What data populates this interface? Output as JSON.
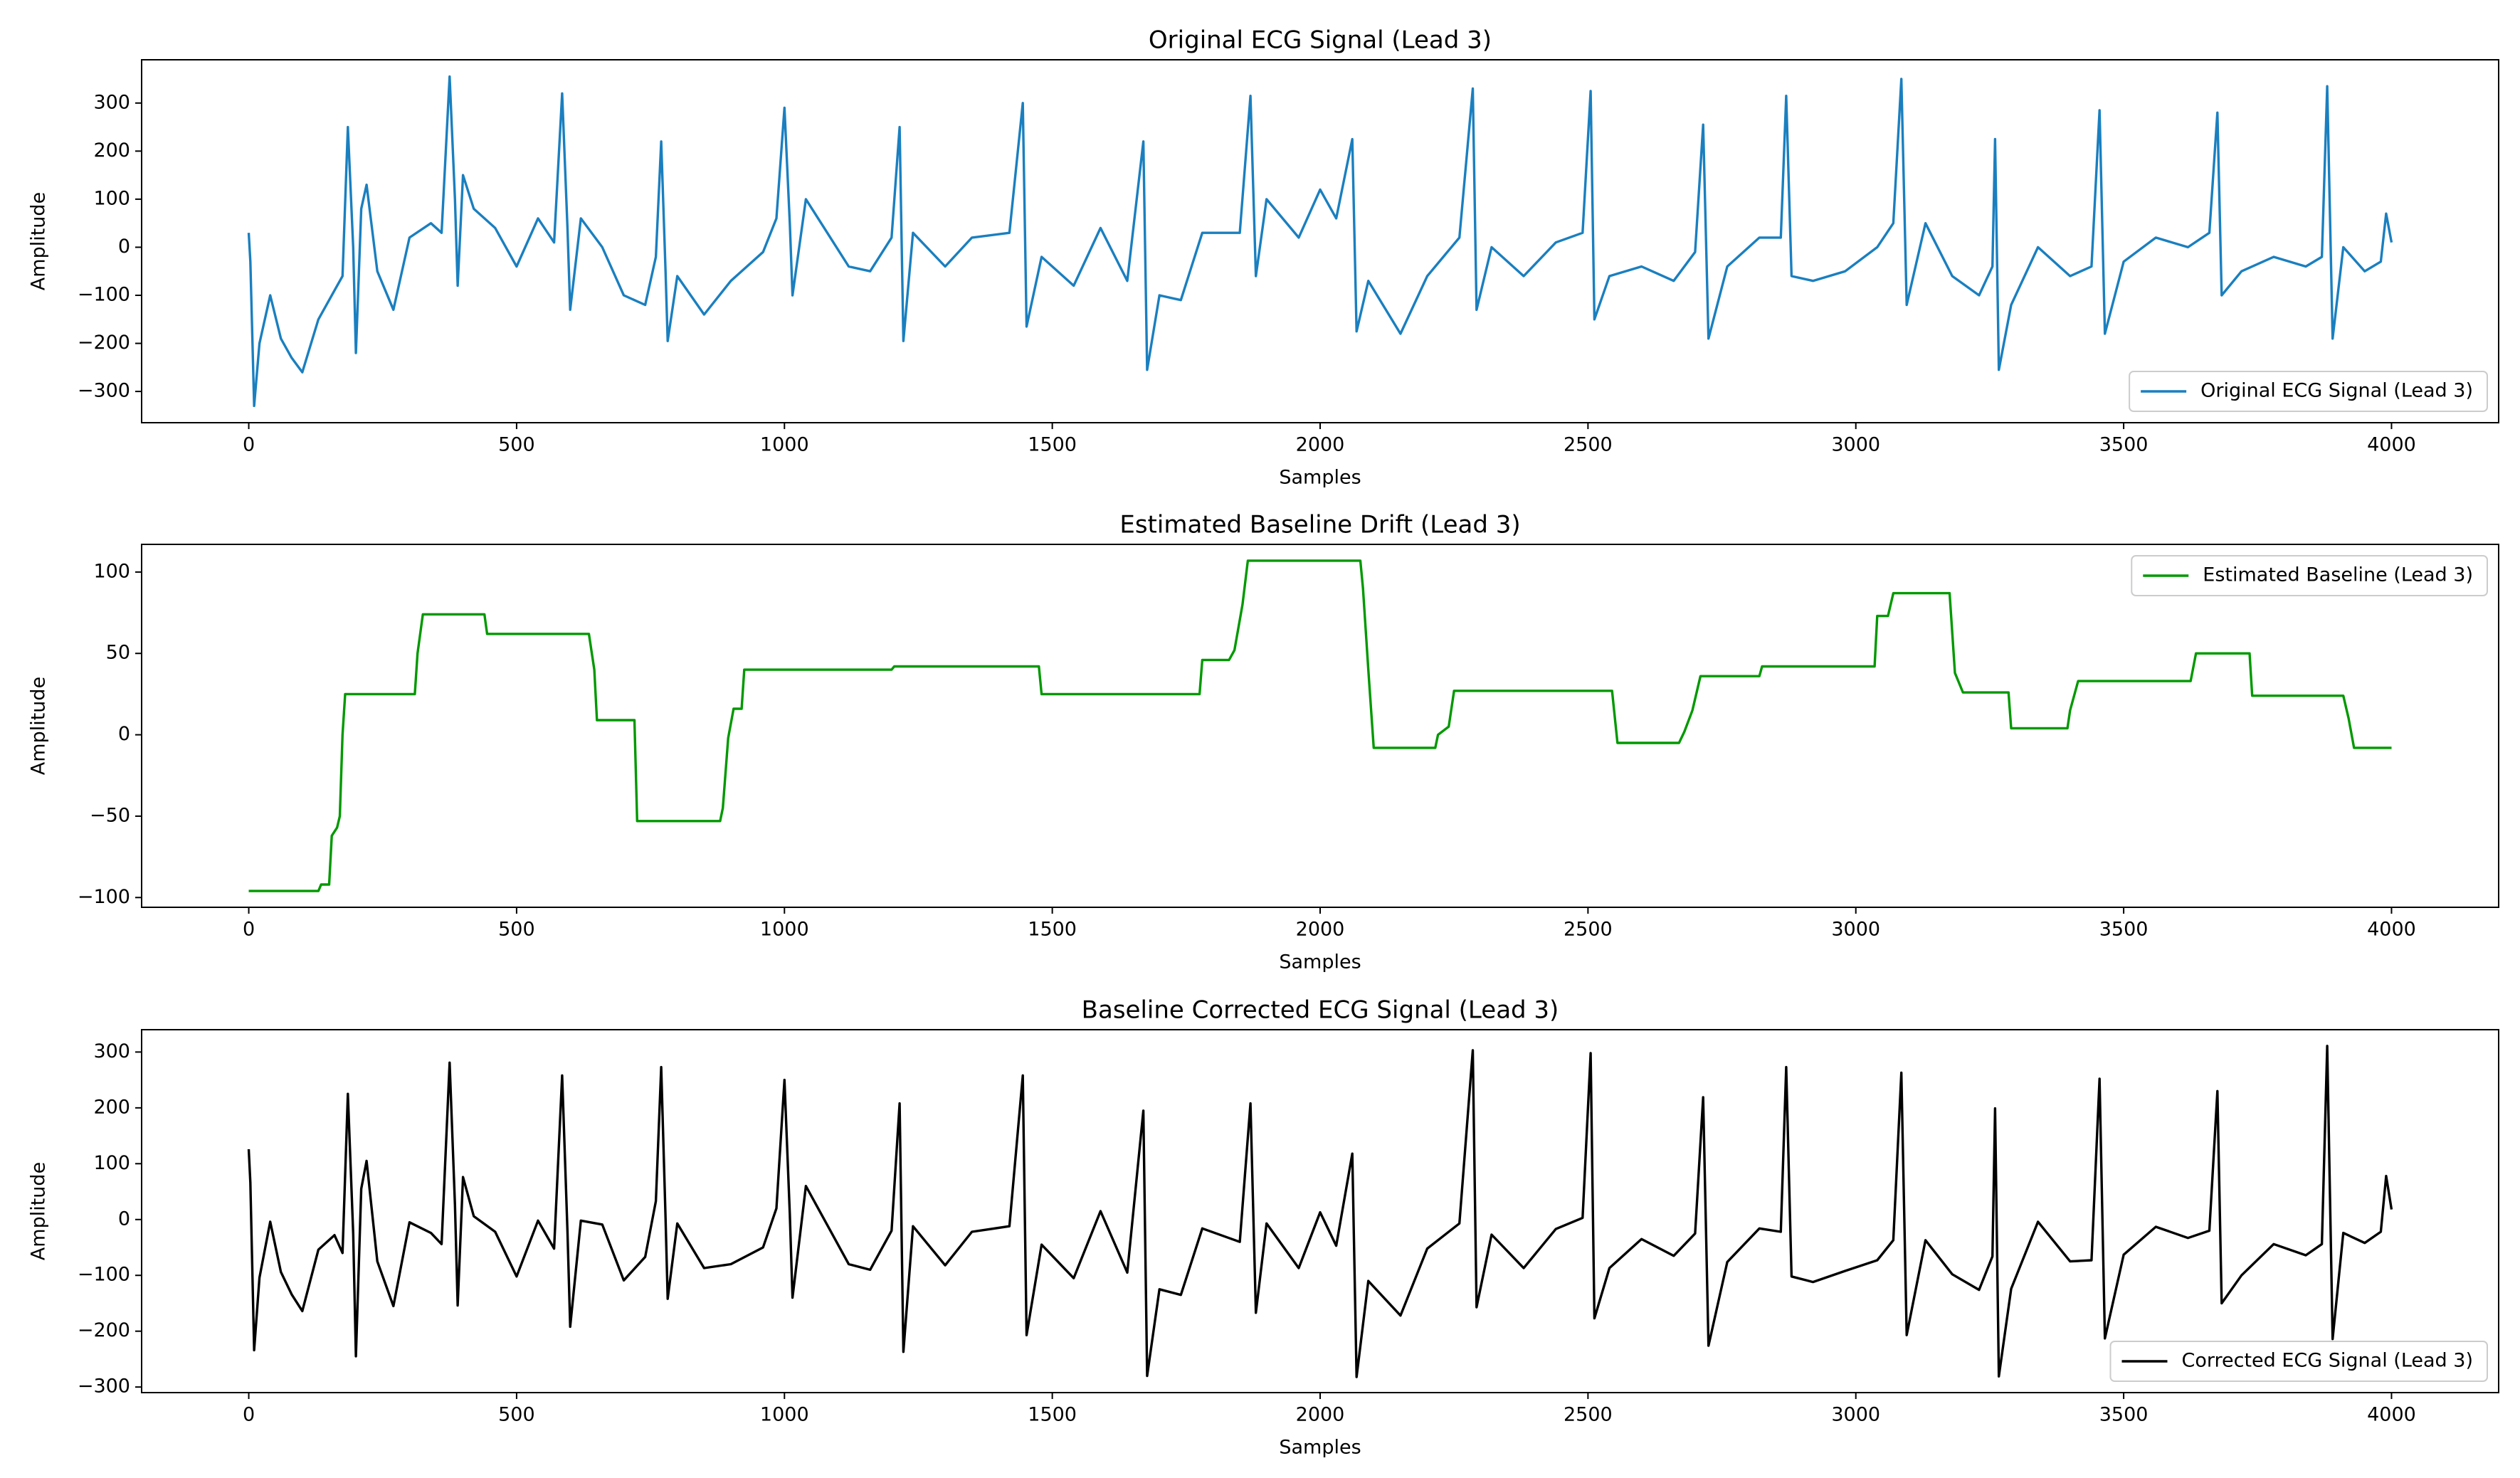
{
  "chart_data": [
    {
      "type": "line",
      "title": "Original ECG Signal (Lead 3)",
      "xlabel": "Samples",
      "ylabel": "Amplitude",
      "x": [
        0,
        3,
        10,
        20,
        40,
        60,
        80,
        100,
        130,
        160,
        175,
        185,
        195,
        200,
        210,
        220,
        240,
        270,
        300,
        340,
        360,
        375,
        385,
        390,
        400,
        420,
        460,
        500,
        540,
        570,
        585,
        595,
        600,
        620,
        660,
        700,
        740,
        760,
        770,
        778,
        782,
        800,
        850,
        900,
        960,
        985,
        1000,
        1010,
        1015,
        1040,
        1080,
        1120,
        1160,
        1200,
        1215,
        1222,
        1240,
        1300,
        1350,
        1420,
        1445,
        1452,
        1480,
        1540,
        1590,
        1640,
        1670,
        1677,
        1700,
        1740,
        1780,
        1850,
        1870,
        1880,
        1900,
        1960,
        2000,
        2030,
        2060,
        2068,
        2090,
        2150,
        2200,
        2260,
        2285,
        2292,
        2320,
        2380,
        2440,
        2490,
        2505,
        2512,
        2540,
        2600,
        2660,
        2700,
        2715,
        2725,
        2760,
        2820,
        2860,
        2870,
        2880,
        2920,
        2980,
        3040,
        3070,
        3085,
        3095,
        3130,
        3180,
        3230,
        3255,
        3260,
        3267,
        3290,
        3340,
        3400,
        3440,
        3455,
        3465,
        3500,
        3560,
        3620,
        3660,
        3675,
        3683,
        3720,
        3780,
        3840,
        3870,
        3880,
        3890,
        3910,
        3950,
        3980,
        3990,
        4000
      ],
      "series": [
        {
          "name": "Original ECG Signal (Lead 3)",
          "color": "#1a7fbf",
          "values": [
            30,
            -30,
            -330,
            -200,
            -100,
            -190,
            -230,
            -260,
            -150,
            -90,
            -60,
            250,
            0,
            -220,
            80,
            130,
            -50,
            -130,
            20,
            50,
            30,
            355,
            100,
            -80,
            150,
            80,
            40,
            -40,
            60,
            10,
            320,
            40,
            -130,
            60,
            0,
            -100,
            -120,
            -20,
            220,
            -50,
            -195,
            -60,
            -140,
            -70,
            -10,
            60,
            290,
            50,
            -100,
            100,
            30,
            -40,
            -50,
            20,
            250,
            -195,
            30,
            -40,
            20,
            30,
            300,
            -165,
            -20,
            -80,
            40,
            -70,
            220,
            -255,
            -100,
            -110,
            30,
            30,
            315,
            -60,
            100,
            20,
            120,
            60,
            225,
            -175,
            -70,
            -180,
            -60,
            20,
            330,
            -130,
            0,
            -60,
            10,
            30,
            325,
            -150,
            -60,
            -40,
            -70,
            -10,
            255,
            -190,
            -40,
            20,
            20,
            315,
            -60,
            -70,
            -50,
            0,
            50,
            350,
            -120,
            50,
            -60,
            -100,
            -40,
            225,
            -255,
            -120,
            0,
            -60,
            -40,
            285,
            -180,
            -30,
            20,
            0,
            30,
            280,
            -100,
            -50,
            -20,
            -40,
            -20,
            335,
            -190,
            0,
            -50,
            -30,
            70,
            10
          ]
        }
      ],
      "xlim": [
        -200,
        4200
      ],
      "ylim": [
        -365,
        390
      ],
      "xticks": [
        0,
        500,
        1000,
        1500,
        2000,
        2500,
        3000,
        3500,
        4000
      ],
      "yticks": [
        {
          "value": -300,
          "label": "−300"
        },
        {
          "value": -200,
          "label": "−200"
        },
        {
          "value": -100,
          "label": "−100"
        },
        0,
        100,
        200,
        300
      ],
      "legend": "lower right"
    },
    {
      "type": "line",
      "title": "Estimated Baseline Drift (Lead 3)",
      "xlabel": "Samples",
      "ylabel": "Amplitude",
      "x": [
        0,
        130,
        135,
        150,
        155,
        165,
        170,
        175,
        180,
        310,
        315,
        325,
        440,
        445,
        635,
        645,
        650,
        720,
        725,
        880,
        885,
        895,
        905,
        920,
        925,
        1200,
        1205,
        1475,
        1480,
        1775,
        1780,
        1830,
        1840,
        1855,
        1865,
        2075,
        2080,
        2090,
        2100,
        2215,
        2220,
        2240,
        2250,
        2545,
        2555,
        2670,
        2680,
        2695,
        2710,
        2820,
        2825,
        3035,
        3040,
        3060,
        3070,
        3175,
        3185,
        3200,
        3285,
        3290,
        3395,
        3400,
        3415,
        3625,
        3635,
        3735,
        3740,
        3910,
        3920,
        3930,
        4000
      ],
      "series": [
        {
          "name": "Estimated Baseline (Lead 3)",
          "color": "#009900",
          "values": [
            -96,
            -96,
            -92,
            -92,
            -62,
            -57,
            -50,
            0,
            25,
            25,
            50,
            74,
            74,
            62,
            62,
            40,
            9,
            9,
            -53,
            -53,
            -45,
            -2,
            16,
            16,
            40,
            40,
            42,
            42,
            25,
            25,
            46,
            46,
            52,
            80,
            107,
            107,
            90,
            40,
            -8,
            -8,
            0,
            5,
            27,
            27,
            -5,
            -5,
            2,
            15,
            36,
            36,
            42,
            42,
            73,
            73,
            87,
            87,
            38,
            26,
            26,
            4,
            4,
            15,
            33,
            33,
            50,
            50,
            24,
            24,
            10,
            -8,
            -8
          ]
        }
      ],
      "xlim": [
        -200,
        4200
      ],
      "ylim": [
        -106,
        117
      ],
      "xticks": [
        0,
        500,
        1000,
        1500,
        2000,
        2500,
        3000,
        3500,
        4000
      ],
      "yticks": [
        {
          "value": -100,
          "label": "−100"
        },
        {
          "value": -50,
          "label": "−50"
        },
        0,
        50,
        100
      ],
      "legend": "upper right"
    },
    {
      "type": "line",
      "title": "Baseline Corrected ECG Signal (Lead 3)",
      "xlabel": "Samples",
      "ylabel": "Amplitude",
      "x": [
        0,
        3,
        10,
        20,
        40,
        60,
        80,
        100,
        130,
        160,
        175,
        185,
        195,
        200,
        210,
        220,
        240,
        270,
        300,
        340,
        360,
        375,
        385,
        390,
        400,
        420,
        460,
        500,
        540,
        570,
        585,
        595,
        600,
        620,
        660,
        700,
        740,
        760,
        770,
        778,
        782,
        800,
        850,
        900,
        960,
        985,
        1000,
        1010,
        1015,
        1040,
        1080,
        1120,
        1160,
        1200,
        1215,
        1222,
        1240,
        1300,
        1350,
        1420,
        1445,
        1452,
        1480,
        1540,
        1590,
        1640,
        1670,
        1677,
        1700,
        1740,
        1780,
        1850,
        1870,
        1880,
        1900,
        1960,
        2000,
        2030,
        2060,
        2068,
        2090,
        2150,
        2200,
        2260,
        2285,
        2292,
        2320,
        2380,
        2440,
        2490,
        2505,
        2512,
        2540,
        2600,
        2660,
        2700,
        2715,
        2725,
        2760,
        2820,
        2860,
        2870,
        2880,
        2920,
        2980,
        3040,
        3070,
        3085,
        3095,
        3130,
        3180,
        3230,
        3255,
        3260,
        3267,
        3290,
        3340,
        3400,
        3440,
        3455,
        3465,
        3500,
        3560,
        3620,
        3660,
        3675,
        3683,
        3720,
        3780,
        3840,
        3870,
        3880,
        3890,
        3910,
        3950,
        3980,
        3990,
        4000
      ],
      "series": [
        {
          "name": "Corrected ECG Signal (Lead 3)",
          "color": "#000000",
          "values": [
            126,
            66,
            -234,
            -104,
            -4,
            -94,
            -134,
            -164,
            -54,
            -28,
            -60,
            225,
            -25,
            -245,
            55,
            105,
            -75,
            -155,
            -5,
            -24,
            -44,
            281,
            26,
            -154,
            76,
            6,
            -22,
            -102,
            -2,
            -52,
            258,
            -22,
            -192,
            -2,
            -9,
            -109,
            -67,
            33,
            273,
            3,
            -142,
            -7,
            -87,
            -80,
            -50,
            20,
            250,
            10,
            -140,
            60,
            -10,
            -80,
            -90,
            -20,
            208,
            -237,
            -12,
            -82,
            -22,
            -12,
            258,
            -207,
            -45,
            -105,
            15,
            -95,
            195,
            -280,
            -125,
            -135,
            -16,
            -40,
            208,
            -167,
            -7,
            -87,
            13,
            -47,
            118,
            -282,
            -110,
            -172,
            -52,
            -7,
            303,
            -157,
            -27,
            -87,
            -17,
            3,
            298,
            -177,
            -87,
            -35,
            -65,
            -25,
            219,
            -226,
            -76,
            -16,
            -22,
            273,
            -102,
            -112,
            -92,
            -73,
            -37,
            263,
            -207,
            -37,
            -98,
            -126,
            -66,
            199,
            -281,
            -124,
            -4,
            -75,
            -73,
            252,
            -213,
            -63,
            -13,
            -33,
            -20,
            230,
            -150,
            -100,
            -44,
            -64,
            -44,
            311,
            -214,
            -24,
            -42,
            -22,
            78,
            18
          ]
        }
      ],
      "xlim": [
        -200,
        4200
      ],
      "ylim": [
        -310,
        340
      ],
      "xticks": [
        0,
        500,
        1000,
        1500,
        2000,
        2500,
        3000,
        3500,
        4000
      ],
      "yticks": [
        {
          "value": -300,
          "label": "−300"
        },
        {
          "value": -200,
          "label": "−200"
        },
        {
          "value": -100,
          "label": "−100"
        },
        0,
        100,
        200,
        300
      ],
      "legend": "lower right"
    }
  ]
}
